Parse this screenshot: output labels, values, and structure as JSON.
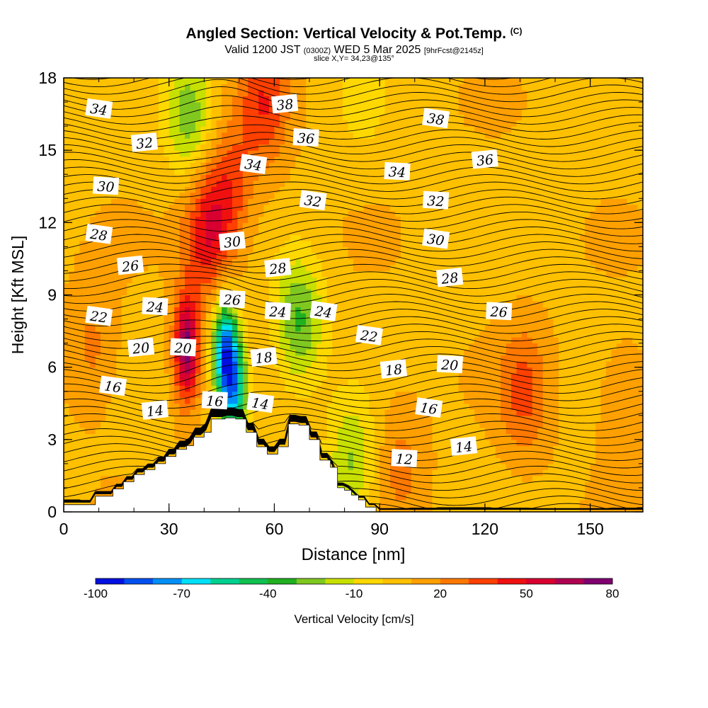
{
  "title": {
    "main": "Angled Section: Vertical Velocity & Pot.Temp.",
    "main_unit": "(C)",
    "valid_prefix": "Valid 1200 JST",
    "valid_utc": "(0300Z)",
    "valid_date": "WED 5 Mar 2025",
    "forecast": "[9hrFcst@2145z]",
    "slice": "slice X,Y= 34,23@135°"
  },
  "colors": {
    "terrain": "#ffffff",
    "contour": "#000000",
    "background": "#ffffff"
  },
  "chart_data": {
    "type": "heatmap",
    "title": "Angled Section: Vertical Velocity & Pot.Temp.",
    "xlabel": "Distance [nm]",
    "ylabel": "Height [Kft MSL]",
    "xlim": [
      0,
      165
    ],
    "ylim": [
      0,
      18
    ],
    "xticks": [
      "0",
      "30",
      "60",
      "90",
      "120",
      "150"
    ],
    "yticks": [
      "0",
      "3",
      "6",
      "9",
      "12",
      "15",
      "18"
    ],
    "colorbar": {
      "label": "Vertical Velocity [cm/s]",
      "tick_labels": [
        "-100",
        "-70",
        "-40",
        "-10",
        "20",
        "50",
        "80"
      ],
      "min": -100,
      "max": 80,
      "step": 10,
      "colors": [
        "#0010e0",
        "#0050f0",
        "#0090f8",
        "#00e0f8",
        "#00d090",
        "#10c050",
        "#20b020",
        "#80c820",
        "#c8e000",
        "#ffd800",
        "#ffc000",
        "#ffa000",
        "#ff7800",
        "#ff4000",
        "#f01010",
        "#d80030",
        "#b00050",
        "#800070"
      ]
    },
    "velocity_features": [
      {
        "name": "updraft",
        "x": 35,
        "y": 6.8,
        "value": 65
      },
      {
        "name": "updraft",
        "x": 41,
        "y": 11.5,
        "value": 40
      },
      {
        "name": "updraft",
        "x": 57,
        "y": 17,
        "value": 30
      },
      {
        "name": "updraft",
        "x": 47,
        "y": 13.5,
        "value": 25
      },
      {
        "name": "downdraft",
        "x": 46,
        "y": 6.5,
        "value": -90
      },
      {
        "name": "downdraft",
        "x": 49,
        "y": 5.0,
        "value": -60
      },
      {
        "name": "downdraft",
        "x": 36,
        "y": 16.5,
        "value": -35
      },
      {
        "name": "downdraft",
        "x": 67,
        "y": 8.0,
        "value": -40
      },
      {
        "name": "downdraft",
        "x": 82,
        "y": 2.0,
        "value": -30
      },
      {
        "name": "downdraft",
        "x": 85,
        "y": 17.5,
        "value": -12
      },
      {
        "name": "updraft",
        "x": 131,
        "y": 5.0,
        "value": 25
      },
      {
        "name": "updraft",
        "x": 96,
        "y": 2.0,
        "value": 15
      },
      {
        "name": "updraft",
        "x": 8,
        "y": 6.8,
        "value": 15
      },
      {
        "name": "updraft",
        "x": 160,
        "y": 4.5,
        "value": 12
      }
    ],
    "pot_temp_labels": [
      {
        "text": "34",
        "x": 10,
        "y": 16.7
      },
      {
        "text": "32",
        "x": 23,
        "y": 15.3
      },
      {
        "text": "30",
        "x": 12,
        "y": 13.5
      },
      {
        "text": "28",
        "x": 10,
        "y": 11.5
      },
      {
        "text": "26",
        "x": 19,
        "y": 10.2
      },
      {
        "text": "24",
        "x": 26,
        "y": 8.5
      },
      {
        "text": "22",
        "x": 10,
        "y": 8.1
      },
      {
        "text": "20",
        "x": 22,
        "y": 6.8
      },
      {
        "text": "20",
        "x": 34,
        "y": 6.8
      },
      {
        "text": "16",
        "x": 14,
        "y": 5.2
      },
      {
        "text": "14",
        "x": 26,
        "y": 4.2
      },
      {
        "text": "16",
        "x": 43,
        "y": 4.6
      },
      {
        "text": "14",
        "x": 56,
        "y": 4.5
      },
      {
        "text": "30",
        "x": 48,
        "y": 11.2
      },
      {
        "text": "26",
        "x": 48,
        "y": 8.8
      },
      {
        "text": "34",
        "x": 54,
        "y": 14.4
      },
      {
        "text": "38",
        "x": 63,
        "y": 16.9
      },
      {
        "text": "36",
        "x": 69,
        "y": 15.5
      },
      {
        "text": "32",
        "x": 71,
        "y": 12.9
      },
      {
        "text": "28",
        "x": 61,
        "y": 10.1
      },
      {
        "text": "24",
        "x": 61,
        "y": 8.3
      },
      {
        "text": "24",
        "x": 74,
        "y": 8.3
      },
      {
        "text": "18",
        "x": 57,
        "y": 6.4
      },
      {
        "text": "34",
        "x": 95,
        "y": 14.1
      },
      {
        "text": "38",
        "x": 106,
        "y": 16.3
      },
      {
        "text": "36",
        "x": 120,
        "y": 14.6
      },
      {
        "text": "32",
        "x": 106,
        "y": 12.9
      },
      {
        "text": "30",
        "x": 106,
        "y": 11.3
      },
      {
        "text": "28",
        "x": 110,
        "y": 9.7
      },
      {
        "text": "26",
        "x": 124,
        "y": 8.3
      },
      {
        "text": "22",
        "x": 87,
        "y": 7.3
      },
      {
        "text": "18",
        "x": 94,
        "y": 5.9
      },
      {
        "text": "20",
        "x": 110,
        "y": 6.1
      },
      {
        "text": "16",
        "x": 104,
        "y": 4.3
      },
      {
        "text": "14",
        "x": 114,
        "y": 2.7
      },
      {
        "text": "12",
        "x": 97,
        "y": 2.2
      }
    ],
    "terrain": [
      [
        0,
        0.3
      ],
      [
        9,
        0.3
      ],
      [
        9,
        0.65
      ],
      [
        14,
        0.65
      ],
      [
        14,
        0.95
      ],
      [
        17,
        0.95
      ],
      [
        17,
        1.25
      ],
      [
        20,
        1.25
      ],
      [
        20,
        1.55
      ],
      [
        23,
        1.55
      ],
      [
        23,
        1.75
      ],
      [
        26,
        1.75
      ],
      [
        26,
        2.0
      ],
      [
        29,
        2.0
      ],
      [
        29,
        2.3
      ],
      [
        32,
        2.3
      ],
      [
        32,
        2.6
      ],
      [
        35,
        2.6
      ],
      [
        35,
        2.75
      ],
      [
        37,
        2.75
      ],
      [
        37,
        3.1
      ],
      [
        40,
        3.1
      ],
      [
        40,
        3.3
      ],
      [
        42,
        3.3
      ],
      [
        42,
        3.85
      ],
      [
        46,
        3.85
      ],
      [
        46,
        3.9
      ],
      [
        49,
        3.9
      ],
      [
        49,
        3.85
      ],
      [
        52,
        3.85
      ],
      [
        52,
        3.3
      ],
      [
        55,
        3.3
      ],
      [
        55,
        2.7
      ],
      [
        58,
        2.7
      ],
      [
        58,
        2.4
      ],
      [
        61,
        2.4
      ],
      [
        61,
        2.7
      ],
      [
        64,
        2.7
      ],
      [
        64,
        3.65
      ],
      [
        67,
        3.65
      ],
      [
        67,
        3.6
      ],
      [
        70,
        3.6
      ],
      [
        70,
        3.0
      ],
      [
        73,
        3.0
      ],
      [
        73,
        2.15
      ],
      [
        76,
        2.15
      ],
      [
        76,
        1.85
      ],
      [
        78,
        1.85
      ],
      [
        78,
        1.0
      ],
      [
        80,
        1.0
      ],
      [
        80,
        0.9
      ],
      [
        82,
        0.9
      ],
      [
        82,
        0.7
      ],
      [
        84,
        0.7
      ],
      [
        84,
        0.5
      ],
      [
        86,
        0.5
      ],
      [
        86,
        0.2
      ],
      [
        89,
        0.2
      ],
      [
        89,
        0.0
      ],
      [
        165,
        0.0
      ]
    ]
  }
}
